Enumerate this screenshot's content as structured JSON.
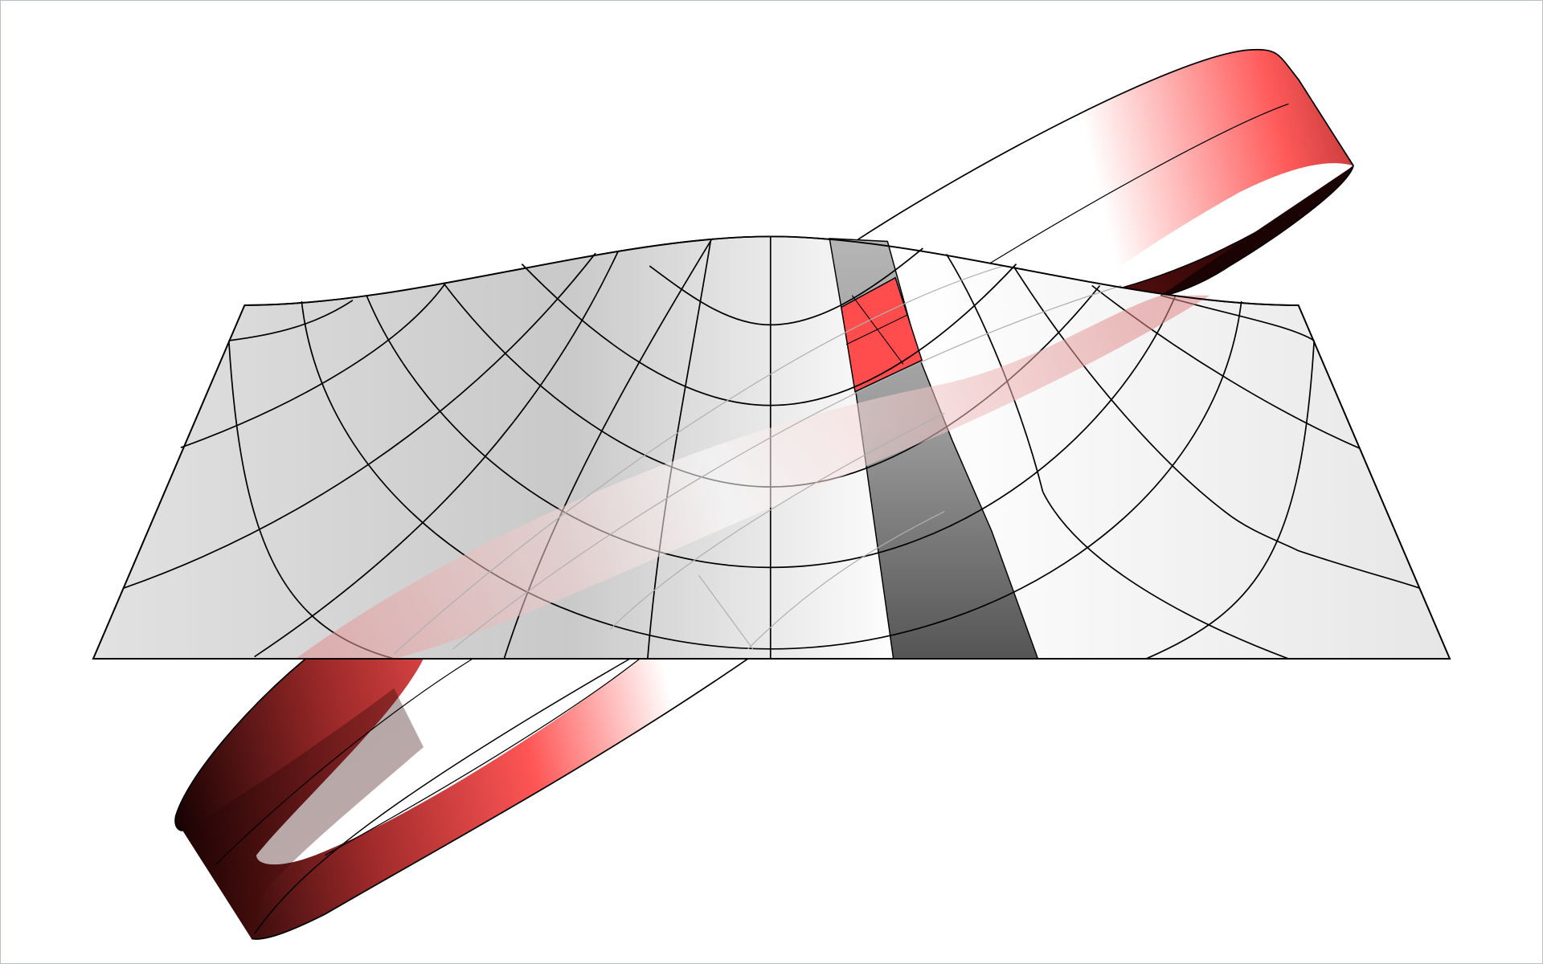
{
  "figure": {
    "type": "3d-surface-illustration",
    "surfaces": [
      {
        "name": "curved-grid-sheet",
        "fill": "#e6e6e6",
        "grid_color": "#000000"
      },
      {
        "name": "twisted-band",
        "fill_dark": "#1c0303",
        "fill_mid": "#ff5555",
        "fill_light": "#ffffff"
      }
    ],
    "highlights": {
      "strip_fill_top": "#b0b0b0",
      "strip_fill_bottom": "#555555",
      "cell_fill": "#ff4c4c"
    },
    "colors": {
      "frame": "#b9c0cc",
      "background": "#ffffff",
      "line": "#000000",
      "hidden_line": "#b0b0b0"
    }
  }
}
